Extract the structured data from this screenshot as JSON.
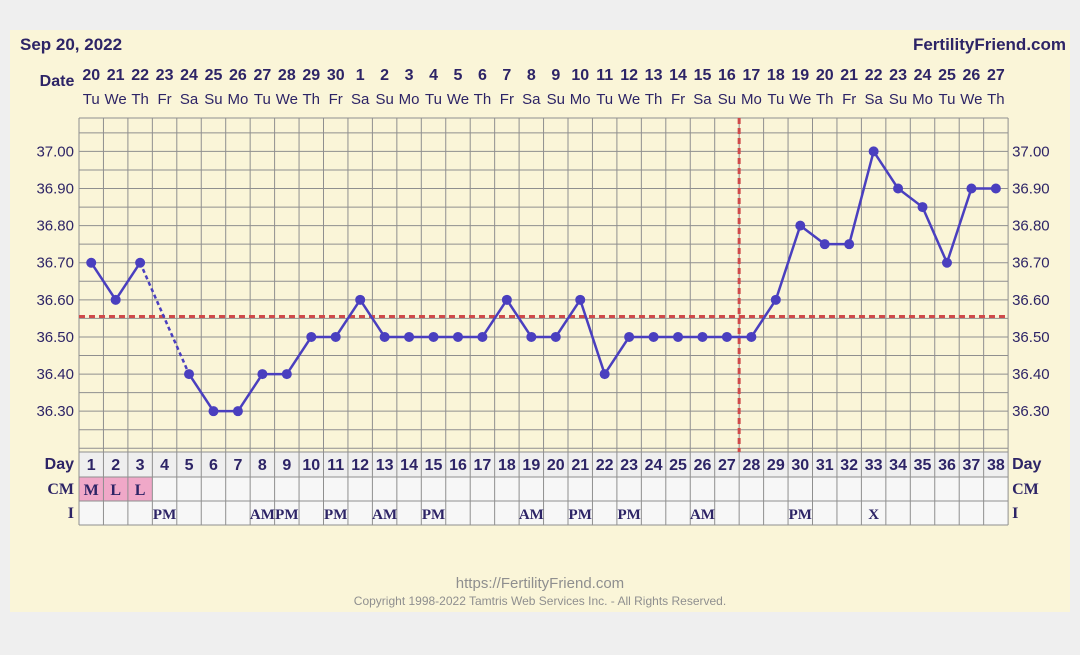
{
  "header": {
    "date": "Sep 20, 2022",
    "brand": "FertilityFriend.com"
  },
  "footer": {
    "url": "https://FertilityFriend.com",
    "copyright": "Copyright 1998-2022 Tamtris Web Services Inc. - All Rights Reserved."
  },
  "colors": {
    "line": "#4a3fbf",
    "coverline": "#cf4a4a",
    "grid": "#8f8f8f",
    "text": "#2d2466",
    "cm_fill": "#f0a8c8",
    "row_fill": "#efefef"
  },
  "chart_data": {
    "type": "line",
    "title": "",
    "row_labels": {
      "date": "Date",
      "day": "Day",
      "cm": "CM",
      "i": "I"
    },
    "dates": [
      "20",
      "21",
      "22",
      "23",
      "24",
      "25",
      "26",
      "27",
      "28",
      "29",
      "30",
      "1",
      "2",
      "3",
      "4",
      "5",
      "6",
      "7",
      "8",
      "9",
      "10",
      "11",
      "12",
      "13",
      "14",
      "15",
      "16",
      "17",
      "18",
      "19",
      "20",
      "21",
      "22",
      "23",
      "24",
      "25",
      "26",
      "27"
    ],
    "weekdays": [
      "Tu",
      "We",
      "Th",
      "Fr",
      "Sa",
      "Su",
      "Mo",
      "Tu",
      "We",
      "Th",
      "Fr",
      "Sa",
      "Su",
      "Mo",
      "Tu",
      "We",
      "Th",
      "Fr",
      "Sa",
      "Su",
      "Mo",
      "Tu",
      "We",
      "Th",
      "Fr",
      "Sa",
      "Su",
      "Mo",
      "Tu",
      "We",
      "Th",
      "Fr",
      "Sa",
      "Su",
      "Mo",
      "Tu",
      "We",
      "Th"
    ],
    "days": [
      1,
      2,
      3,
      4,
      5,
      6,
      7,
      8,
      9,
      10,
      11,
      12,
      13,
      14,
      15,
      16,
      17,
      18,
      19,
      20,
      21,
      22,
      23,
      24,
      25,
      26,
      27,
      28,
      29,
      30,
      31,
      32,
      33,
      34,
      35,
      36,
      37,
      38
    ],
    "temperatures": [
      36.7,
      36.6,
      36.7,
      null,
      36.4,
      36.3,
      36.3,
      36.4,
      36.4,
      36.5,
      36.5,
      36.6,
      36.5,
      36.5,
      36.5,
      36.5,
      36.5,
      36.6,
      36.5,
      36.5,
      36.6,
      36.4,
      36.5,
      36.5,
      36.5,
      36.5,
      36.5,
      36.5,
      36.6,
      36.8,
      36.75,
      36.75,
      37.0,
      36.9,
      36.85,
      36.7,
      36.9,
      36.9
    ],
    "cm": [
      "M",
      "L",
      "L",
      "",
      "",
      "",
      "",
      "",
      "",
      "",
      "",
      "",
      "",
      "",
      "",
      "",
      "",
      "",
      "",
      "",
      "",
      "",
      "",
      "",
      "",
      "",
      "",
      "",
      "",
      "",
      "",
      "",
      "",
      "",
      "",
      "",
      "",
      ""
    ],
    "intercourse": [
      "",
      "",
      "",
      "PM",
      "",
      "",
      "",
      "AM",
      "PM",
      "",
      "PM",
      "",
      "AM",
      "",
      "PM",
      "",
      "",
      "",
      "AM",
      "",
      "PM",
      "",
      "PM",
      "",
      "",
      "AM",
      "",
      "",
      "",
      "PM",
      "",
      "",
      "X",
      "",
      "",
      "",
      "",
      ""
    ],
    "coverline": 36.555,
    "ovulation_day": 28,
    "y_ticks": [
      36.3,
      36.4,
      36.5,
      36.6,
      36.7,
      36.8,
      36.9,
      37.0
    ],
    "y_tick_labels": [
      "36.30",
      "36.40",
      "36.50",
      "36.60",
      "36.70",
      "36.80",
      "36.90",
      "37.00"
    ],
    "ylim": [
      36.19,
      37.09
    ],
    "grid": true
  }
}
